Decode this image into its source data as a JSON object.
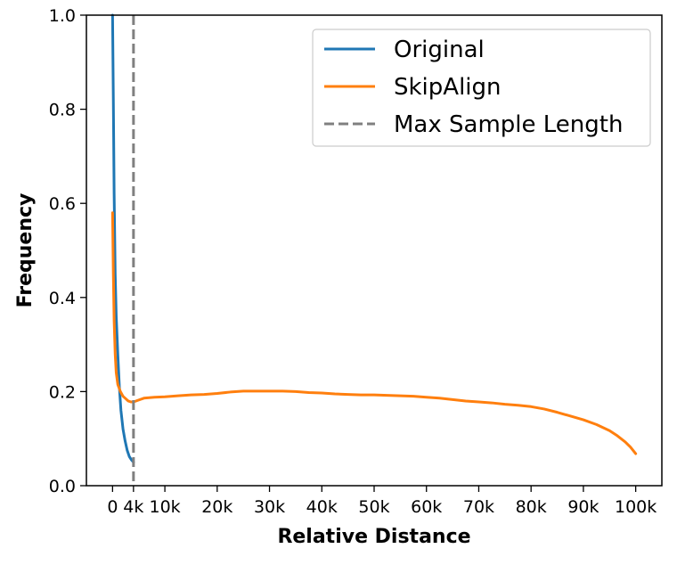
{
  "chart_data": {
    "type": "line",
    "xlabel": "Relative Distance",
    "ylabel": "Frequency",
    "xlim": [
      -5000,
      105000
    ],
    "ylim": [
      0.0,
      1.0
    ],
    "x_ticks": [
      0,
      4000,
      10000,
      20000,
      30000,
      40000,
      50000,
      60000,
      70000,
      80000,
      90000,
      100000
    ],
    "x_tick_labels": [
      "0",
      "4k",
      "10k",
      "20k",
      "30k",
      "40k",
      "50k",
      "60k",
      "70k",
      "80k",
      "90k",
      "100k"
    ],
    "y_ticks": [
      0.0,
      0.2,
      0.4,
      0.6,
      0.8,
      1.0
    ],
    "y_tick_labels": [
      "0.0",
      "0.2",
      "0.4",
      "0.6",
      "0.8",
      "1.0"
    ],
    "legend_position": "top-right",
    "series": [
      {
        "name": "Original",
        "color": "#1f77b4",
        "x": [
          0,
          150,
          300,
          500,
          700,
          1000,
          1300,
          1600,
          2000,
          2400,
          2800,
          3200,
          3600,
          4000
        ],
        "y": [
          1.0,
          0.82,
          0.62,
          0.45,
          0.36,
          0.28,
          0.21,
          0.16,
          0.12,
          0.095,
          0.075,
          0.062,
          0.055,
          0.05
        ]
      },
      {
        "name": "SkipAlign",
        "color": "#ff7f0e",
        "x": [
          0,
          150,
          300,
          500,
          700,
          1000,
          1500,
          2000,
          2500,
          3000,
          3500,
          4000,
          5000,
          6000,
          8000,
          10000,
          12500,
          15000,
          17500,
          20000,
          22500,
          25000,
          27500,
          30000,
          32500,
          35000,
          37500,
          40000,
          42500,
          45000,
          47500,
          50000,
          52500,
          55000,
          57500,
          60000,
          62500,
          65000,
          67500,
          70000,
          72500,
          75000,
          77500,
          80000,
          82500,
          85000,
          87500,
          90000,
          92500,
          95000,
          96500,
          98000,
          99000,
          100000
        ],
        "y": [
          0.58,
          0.45,
          0.35,
          0.28,
          0.24,
          0.215,
          0.2,
          0.19,
          0.185,
          0.18,
          0.178,
          0.178,
          0.182,
          0.186,
          0.188,
          0.189,
          0.191,
          0.193,
          0.194,
          0.196,
          0.199,
          0.201,
          0.201,
          0.201,
          0.201,
          0.2,
          0.198,
          0.197,
          0.195,
          0.194,
          0.193,
          0.193,
          0.192,
          0.191,
          0.19,
          0.188,
          0.186,
          0.183,
          0.18,
          0.178,
          0.176,
          0.173,
          0.171,
          0.168,
          0.163,
          0.156,
          0.148,
          0.14,
          0.13,
          0.117,
          0.106,
          0.093,
          0.082,
          0.068
        ]
      }
    ],
    "reference_lines": [
      {
        "name": "Max Sample Length",
        "orientation": "vertical",
        "x": 4000,
        "color": "#808080",
        "style": "dashed"
      }
    ],
    "legend": [
      "Original",
      "SkipAlign",
      "Max Sample Length"
    ]
  }
}
